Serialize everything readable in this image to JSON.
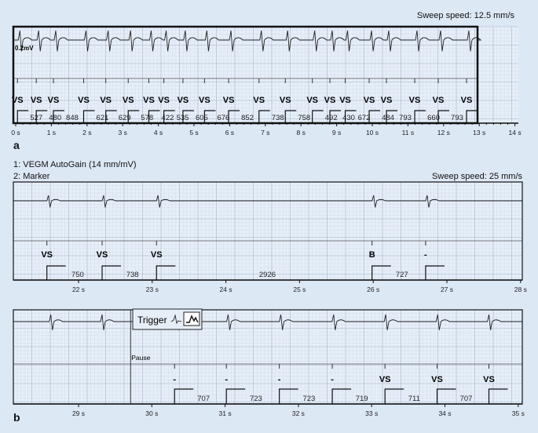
{
  "panel_a": {
    "letter": "a",
    "sweep_speed": "Sweep speed: 12.5 mm/s",
    "amplitude_label": "0.2mV",
    "axis_ticks": [
      "0 s",
      "1 s",
      "2 s",
      "3 s",
      "4 s",
      "5 s",
      "6 s",
      "7 s",
      "8 s",
      "9 s",
      "10 s",
      "11 s",
      "12 s",
      "13 s",
      "14 s"
    ],
    "tick_start_s": 0,
    "first_event_s": 0.05,
    "event_labels": [
      "VS",
      "VS",
      "VS",
      "VS",
      "VS",
      "VS",
      "VS",
      "VS",
      "VS",
      "VS",
      "VS",
      "VS",
      "VS",
      "VS",
      "VS",
      "VS",
      "VS",
      "VS",
      "VS",
      "VS",
      "VS"
    ],
    "intervals_ms": [
      527,
      480,
      848,
      621,
      629,
      578,
      422,
      535,
      605,
      676,
      852,
      738,
      758,
      492,
      430,
      672,
      484,
      793,
      660,
      793
    ]
  },
  "panel_b": {
    "letter": "b",
    "channel_1": "1: VEGM   AutoGain (14 mm/mV)",
    "channel_2": "2: Marker",
    "sweep_speed": "Sweep speed: 25 mm/s",
    "strip_1": {
      "axis_ticks": [
        "22 s",
        "23 s",
        "24 s",
        "25 s",
        "26 s",
        "27 s",
        "28 s"
      ],
      "tick_start_s": 22,
      "first_event_s": 21.57,
      "event_labels": [
        "VS",
        "VS",
        "VS",
        "B",
        "-"
      ],
      "intervals_ms": [
        750,
        738,
        2926,
        727
      ]
    },
    "strip_2": {
      "trigger_label": "Trigger",
      "trigger_icon": "waveform-icon",
      "pause_label": "Pause",
      "pause_s": 29.71,
      "axis_ticks": [
        "29 s",
        "30 s",
        "31 s",
        "32 s",
        "33 s",
        "34 s",
        "35 s"
      ],
      "tick_start_s": 29,
      "first_event_s": 30.31,
      "event_labels": [
        "-",
        "-",
        "-",
        "-",
        "VS",
        "VS",
        "VS"
      ],
      "intervals_ms": [
        707,
        723,
        723,
        719,
        711,
        707
      ]
    }
  },
  "colors": {
    "background": "#dde8f5",
    "grid": "#9fb2c6",
    "trace": "#222222"
  }
}
